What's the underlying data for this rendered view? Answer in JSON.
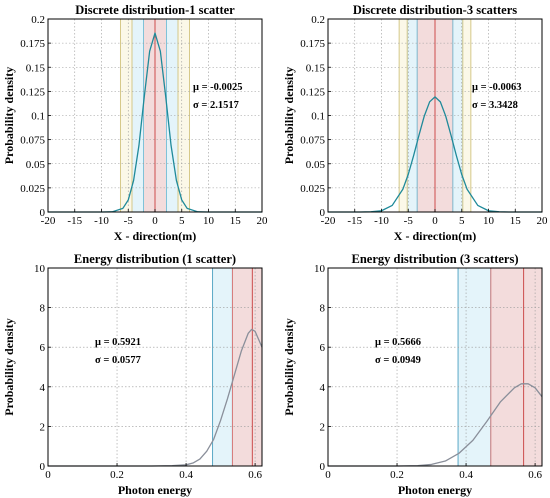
{
  "chart_data": [
    {
      "type": "line",
      "title": "Discrete distribution-1 scatter",
      "xlabel": "X - direction(m)",
      "ylabel": "Probability density",
      "xlim": [
        -20,
        20
      ],
      "ylim": [
        0,
        0.2
      ],
      "x_ticks": [
        -20,
        -15,
        -10,
        -5,
        0,
        5,
        10,
        15,
        20
      ],
      "x_tick_labels": [
        "-20",
        "-15",
        "-10",
        "-5",
        "0",
        "5",
        "10",
        "15",
        "20"
      ],
      "y_ticks": [
        0,
        0.025,
        0.05,
        0.075,
        0.1,
        0.125,
        0.15,
        0.175,
        0.2
      ],
      "y_tick_labels": [
        "0",
        "0.025",
        "0.05",
        "0.075",
        "0.1",
        "0.125",
        "0.15",
        "0.175",
        "0.2"
      ],
      "grid": true,
      "curve": {
        "shape": "gaussian",
        "mu": -0.0025,
        "sigma": 2.1517,
        "x": [
          -20,
          -10,
          -8,
          -6,
          -5,
          -4,
          -3,
          -2,
          -1,
          0,
          1,
          2,
          3,
          4,
          5,
          6,
          8,
          10,
          20
        ],
        "y": [
          0,
          0.0,
          0.0002,
          0.0038,
          0.0124,
          0.0327,
          0.069,
          0.1198,
          0.1666,
          0.1854,
          0.1666,
          0.1198,
          0.069,
          0.0327,
          0.0124,
          0.0038,
          0.0002,
          0.0,
          0
        ],
        "color": "#1f8a9a"
      },
      "annotations": [
        {
          "text": "μ = -0.0025"
        },
        {
          "text": "σ = 2.1517"
        }
      ],
      "bands": [
        {
          "from": -2.15,
          "to": 2.15,
          "fill": "#f3dcdc",
          "edge": "#d47a7a"
        },
        {
          "from": -4.3,
          "to": -2.15,
          "fill": "#e4f4fa",
          "edge": "#7fc3d8"
        },
        {
          "from": 2.15,
          "to": 4.3,
          "fill": "#e4f4fa",
          "edge": "#7fc3d8"
        },
        {
          "from": -6.45,
          "to": -4.3,
          "fill": "#fbf8e8",
          "edge": "#d6c98a"
        },
        {
          "from": 4.3,
          "to": 6.45,
          "fill": "#fbf8e8",
          "edge": "#d6c98a"
        }
      ],
      "vlines": [
        {
          "x": 0,
          "color": "#d05a5a"
        }
      ]
    },
    {
      "type": "line",
      "title": "Discrete distribution-3 scatters",
      "xlabel": "X - direction(m)",
      "ylabel": "Probability density",
      "xlim": [
        -20,
        20
      ],
      "ylim": [
        0,
        0.2
      ],
      "x_ticks": [
        -20,
        -15,
        -10,
        -5,
        0,
        5,
        10,
        15,
        20
      ],
      "x_tick_labels": [
        "-20",
        "-15",
        "-10",
        "-5",
        "0",
        "5",
        "10",
        "15",
        "20"
      ],
      "y_ticks": [
        0,
        0.025,
        0.05,
        0.075,
        0.1,
        0.125,
        0.15,
        0.175,
        0.2
      ],
      "y_tick_labels": [
        "0",
        "0.025",
        "0.05",
        "0.075",
        "0.1",
        "0.125",
        "0.15",
        "0.175",
        "0.2"
      ],
      "grid": true,
      "curve": {
        "shape": "gaussian",
        "mu": -0.0063,
        "sigma": 3.3428,
        "x": [
          -20,
          -14,
          -12,
          -10,
          -8,
          -6,
          -5,
          -4,
          -3,
          -2,
          -1,
          0,
          1,
          2,
          3,
          4,
          5,
          6,
          8,
          10,
          12,
          14,
          20
        ],
        "y": [
          0,
          0.0,
          0.0002,
          0.0013,
          0.0068,
          0.0237,
          0.039,
          0.0584,
          0.0795,
          0.0995,
          0.1142,
          0.1193,
          0.1141,
          0.0994,
          0.0793,
          0.0583,
          0.0388,
          0.0236,
          0.0068,
          0.0013,
          0.0002,
          0.0,
          0
        ],
        "color": "#1f8a9a"
      },
      "annotations": [
        {
          "text": "μ = -0.0063"
        },
        {
          "text": "σ = 3.3428"
        }
      ],
      "bands": [
        {
          "from": -3.34,
          "to": 3.34,
          "fill": "#f3dcdc",
          "edge": "#d47a7a"
        },
        {
          "from": -5.2,
          "to": -3.34,
          "fill": "#e4f4fa",
          "edge": "#7fc3d8"
        },
        {
          "from": 3.34,
          "to": 5.2,
          "fill": "#e4f4fa",
          "edge": "#7fc3d8"
        },
        {
          "from": -6.7,
          "to": -5.2,
          "fill": "#fbf8e8",
          "edge": "#d6c98a"
        },
        {
          "from": 5.2,
          "to": 6.7,
          "fill": "#fbf8e8",
          "edge": "#d6c98a"
        }
      ],
      "vlines": [
        {
          "x": 0,
          "color": "#d05a5a"
        }
      ]
    },
    {
      "type": "line",
      "title": "Energy distribution (1 scatter)",
      "xlabel": "Photon energy",
      "ylabel": "Probability density",
      "xlim": [
        0,
        0.62
      ],
      "ylim": [
        0,
        10
      ],
      "x_ticks": [
        0,
        0.2,
        0.4,
        0.6
      ],
      "x_tick_labels": [
        "0",
        "0.2",
        "0.4",
        "0.6"
      ],
      "y_ticks": [
        0,
        2,
        4,
        6,
        8,
        10
      ],
      "y_tick_labels": [
        "0",
        "2",
        "4",
        "6",
        "8",
        "10"
      ],
      "grid": true,
      "curve": {
        "shape": "skewed",
        "mu": 0.5921,
        "sigma": 0.0577,
        "x": [
          0,
          0.3,
          0.36,
          0.4,
          0.42,
          0.44,
          0.46,
          0.48,
          0.5,
          0.52,
          0.54,
          0.56,
          0.58,
          0.59,
          0.6,
          0.61,
          0.62
        ],
        "y": [
          0,
          0,
          0.02,
          0.06,
          0.15,
          0.35,
          0.75,
          1.35,
          2.3,
          3.4,
          4.6,
          5.8,
          6.7,
          6.9,
          6.8,
          6.4,
          6.0
        ],
        "color": "#8a8f9a"
      },
      "annotations": [
        {
          "text": "μ = 0.5921"
        },
        {
          "text": "σ = 0.0577"
        }
      ],
      "bands": [
        {
          "from": 0.4767,
          "to": 0.5344,
          "fill": "#e4f4fa",
          "edge": "#5aa9c6"
        },
        {
          "from": 0.5344,
          "to": 0.62,
          "fill": "#f3dcdc",
          "edge": "#d47a7a"
        }
      ],
      "vlines": [
        {
          "x": 0.5921,
          "color": "#d05a5a"
        }
      ]
    },
    {
      "type": "line",
      "title": "Energy distribution (3 scatters)",
      "xlabel": "Photon energy",
      "ylabel": "Probability density",
      "xlim": [
        0,
        0.62
      ],
      "ylim": [
        0,
        10
      ],
      "x_ticks": [
        0,
        0.2,
        0.4,
        0.6
      ],
      "x_tick_labels": [
        "0",
        "0.2",
        "0.4",
        "0.6"
      ],
      "y_ticks": [
        0,
        2,
        4,
        6,
        8,
        10
      ],
      "y_tick_labels": [
        "0",
        "2",
        "4",
        "6",
        "8",
        "10"
      ],
      "grid": true,
      "curve": {
        "shape": "skewed",
        "mu": 0.5666,
        "sigma": 0.0949,
        "x": [
          0,
          0.2,
          0.26,
          0.3,
          0.34,
          0.38,
          0.42,
          0.46,
          0.5,
          0.54,
          0.56,
          0.58,
          0.6,
          0.62
        ],
        "y": [
          0,
          0,
          0.02,
          0.08,
          0.25,
          0.65,
          1.3,
          2.25,
          3.25,
          3.95,
          4.15,
          4.15,
          3.95,
          3.5
        ],
        "color": "#8a8f9a"
      },
      "annotations": [
        {
          "text": "μ = 0.5666"
        },
        {
          "text": "σ = 0.0949"
        }
      ],
      "bands": [
        {
          "from": 0.3768,
          "to": 0.4717,
          "fill": "#e4f4fa",
          "edge": "#5aa9c6"
        },
        {
          "from": 0.4717,
          "to": 0.62,
          "fill": "#f3dcdc",
          "edge": "#d47a7a"
        }
      ],
      "vlines": [
        {
          "x": 0.5666,
          "color": "#d05a5a"
        }
      ]
    }
  ]
}
